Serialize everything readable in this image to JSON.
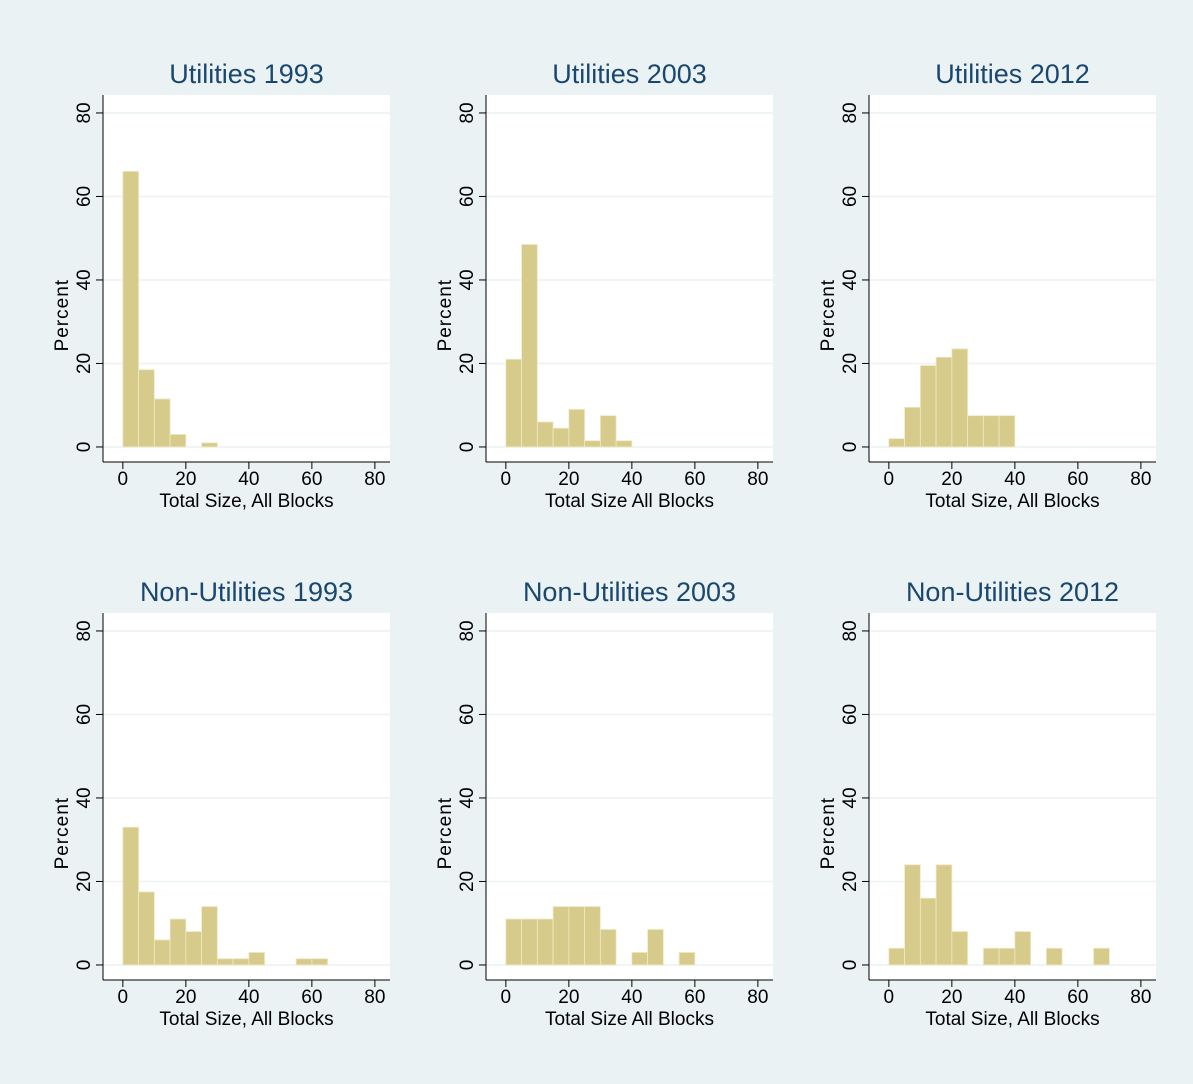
{
  "chart_data": [
    {
      "type": "histogram",
      "title": "Utilities 1993",
      "xlabel": "Total Size, All Blocks",
      "ylabel": "Percent",
      "bins": [
        0,
        5,
        10,
        15,
        20,
        25,
        30
      ],
      "values": [
        66,
        18.5,
        11.5,
        3,
        0,
        1
      ],
      "color": "#d7cb8b",
      "xlim": [
        -6.3,
        84.8
      ],
      "xticks": [
        0,
        20,
        40,
        60,
        80
      ],
      "ylim": [
        -3.6,
        84.3
      ],
      "yticks": [
        0,
        20,
        40,
        60,
        80
      ],
      "grid": true
    },
    {
      "type": "histogram",
      "title": "Utilities 2003",
      "xlabel": "Total Size All Blocks",
      "ylabel": "Percent",
      "bins": [
        0,
        5,
        10,
        15,
        20,
        25,
        30,
        35,
        40
      ],
      "values": [
        21,
        48.5,
        6,
        4.5,
        9,
        1.5,
        7.5,
        1.5
      ],
      "color": "#d7cb8b",
      "xlim": [
        -6.3,
        84.8
      ],
      "xticks": [
        0,
        20,
        40,
        60,
        80
      ],
      "ylim": [
        -3.6,
        84.3
      ],
      "yticks": [
        0,
        20,
        40,
        60,
        80
      ],
      "grid": true
    },
    {
      "type": "histogram",
      "title": "Utilities 2012",
      "xlabel": "Total Size, All Blocks",
      "ylabel": "Percent",
      "bins": [
        0,
        5,
        10,
        15,
        20,
        25,
        30,
        35,
        40
      ],
      "values": [
        2,
        9.5,
        19.5,
        21.5,
        23.5,
        7.5,
        7.5,
        7.5
      ],
      "color": "#d7cb8b",
      "xlim": [
        -6.3,
        84.8
      ],
      "xticks": [
        0,
        20,
        40,
        60,
        80
      ],
      "ylim": [
        -3.6,
        84.3
      ],
      "yticks": [
        0,
        20,
        40,
        60,
        80
      ],
      "grid": true
    },
    {
      "type": "histogram",
      "title": "Non-Utilities 1993",
      "xlabel": "Total Size, All Blocks",
      "ylabel": "Percent",
      "bins": [
        0,
        5,
        10,
        15,
        20,
        25,
        30,
        35,
        40,
        45,
        50,
        55,
        60,
        65
      ],
      "values": [
        33,
        17.5,
        6,
        11,
        8,
        14,
        1.5,
        1.5,
        3,
        0,
        0,
        1.5,
        1.5
      ],
      "color": "#d7cb8b",
      "xlim": [
        -6.3,
        84.8
      ],
      "xticks": [
        0,
        20,
        40,
        60,
        80
      ],
      "ylim": [
        -3.6,
        84.3
      ],
      "yticks": [
        0,
        20,
        40,
        60,
        80
      ],
      "grid": true
    },
    {
      "type": "histogram",
      "title": "Non-Utilities 2003",
      "xlabel": "Total Size All Blocks",
      "ylabel": "Percent",
      "bins": [
        0,
        5,
        10,
        15,
        20,
        25,
        30,
        35,
        40,
        45,
        50,
        55,
        60
      ],
      "values": [
        11,
        11,
        11,
        14,
        14,
        14,
        8.5,
        0,
        3,
        8.5,
        0,
        3
      ],
      "color": "#d7cb8b",
      "xlim": [
        -6.3,
        84.8
      ],
      "xticks": [
        0,
        20,
        40,
        60,
        80
      ],
      "ylim": [
        -3.6,
        84.3
      ],
      "yticks": [
        0,
        20,
        40,
        60,
        80
      ],
      "grid": true
    },
    {
      "type": "histogram",
      "title": "Non-Utilities 2012",
      "xlabel": "Total Size, All Blocks",
      "ylabel": "Percent",
      "bins": [
        0,
        5,
        10,
        15,
        20,
        25,
        30,
        35,
        40,
        45,
        50,
        55,
        60,
        65,
        70
      ],
      "values": [
        4,
        24,
        16,
        24,
        8,
        0,
        4,
        4,
        8,
        0,
        4,
        0,
        0,
        4
      ],
      "color": "#d7cb8b",
      "xlim": [
        -6.3,
        84.8
      ],
      "xticks": [
        0,
        20,
        40,
        60,
        80
      ],
      "ylim": [
        -3.6,
        84.3
      ],
      "yticks": [
        0,
        20,
        40,
        60,
        80
      ],
      "grid": true
    }
  ]
}
